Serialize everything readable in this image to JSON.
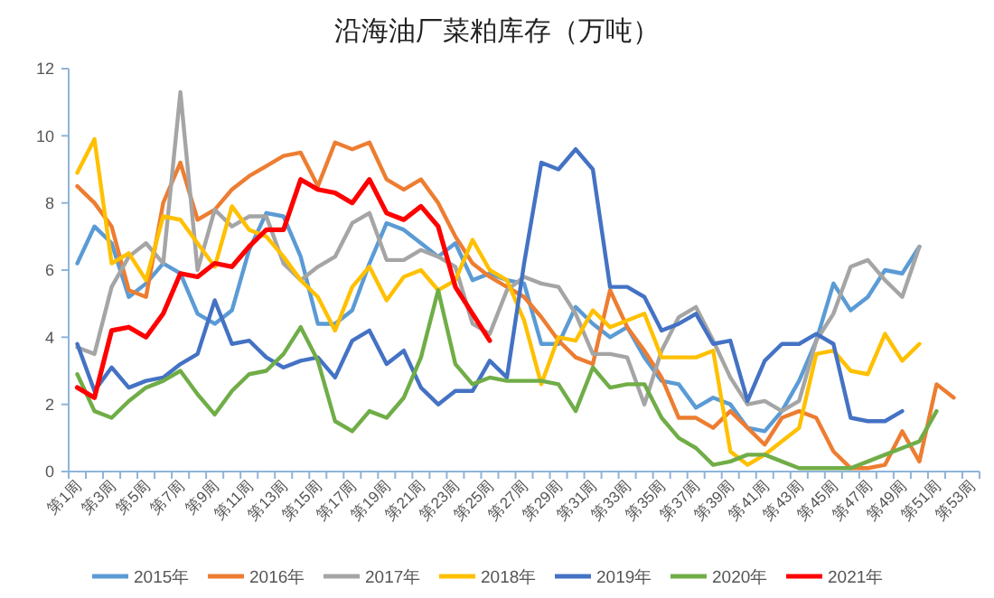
{
  "chart_data": {
    "type": "line",
    "title": "沿海油厂菜粕库存（万吨）",
    "categories": [
      "第1周",
      null,
      "第3周",
      null,
      "第5周",
      null,
      "第7周",
      null,
      "第9周",
      null,
      "第11周",
      null,
      "第13周",
      null,
      "第15周",
      null,
      "第17周",
      null,
      "第19周",
      null,
      "第21周",
      null,
      "第23周",
      null,
      "第25周",
      null,
      "第27周",
      null,
      "第29周",
      null,
      "第31周",
      null,
      "第33周",
      null,
      "第35周",
      null,
      "第37周",
      null,
      "第39周",
      null,
      "第41周",
      null,
      "第43周",
      null,
      "第45周",
      null,
      "第47周",
      null,
      "第49周",
      null,
      "第51周",
      null,
      "第53周"
    ],
    "ylim": [
      0,
      12
    ],
    "yticks": [
      0,
      2,
      4,
      6,
      8,
      10,
      12
    ],
    "grid": false,
    "legend": "bottom",
    "marker": "none",
    "line_style": "solid",
    "series": [
      {
        "name": "2015年",
        "color": "#5b9bd5",
        "values": [
          6.2,
          7.3,
          6.8,
          5.2,
          5.6,
          6.2,
          5.9,
          4.7,
          4.4,
          4.8,
          6.6,
          7.7,
          7.6,
          6.4,
          4.4,
          4.4,
          4.8,
          6.2,
          7.4,
          7.2,
          6.8,
          6.4,
          6.8,
          5.7,
          5.9,
          5.7,
          5.6,
          3.8,
          3.8,
          4.9,
          4.4,
          4.0,
          4.3,
          3.4,
          2.7,
          2.6,
          1.9,
          2.2,
          2.0,
          1.3,
          1.2,
          1.8,
          2.7,
          3.9,
          5.6,
          4.8,
          5.2,
          6.0,
          5.9,
          6.7,
          null,
          null,
          null
        ]
      },
      {
        "name": "2016年",
        "color": "#ed7d31",
        "values": [
          8.5,
          8.0,
          7.3,
          5.4,
          5.2,
          8.0,
          9.2,
          7.5,
          7.8,
          8.4,
          8.8,
          9.1,
          9.4,
          9.5,
          8.5,
          9.8,
          9.6,
          9.8,
          8.7,
          8.4,
          8.7,
          8.0,
          7.0,
          6.2,
          5.8,
          5.5,
          5.2,
          4.6,
          3.9,
          3.4,
          3.2,
          5.4,
          4.3,
          3.6,
          2.8,
          1.6,
          1.6,
          1.3,
          1.8,
          1.3,
          0.8,
          1.6,
          1.8,
          1.6,
          0.6,
          0.1,
          0.1,
          0.2,
          1.2,
          0.3,
          2.6,
          2.2,
          null
        ]
      },
      {
        "name": "2017年",
        "color": "#a5a5a5",
        "values": [
          3.7,
          3.5,
          5.5,
          6.4,
          6.8,
          6.2,
          11.3,
          6.0,
          7.8,
          7.3,
          7.6,
          7.6,
          6.2,
          5.7,
          6.1,
          6.4,
          7.4,
          7.7,
          6.3,
          6.3,
          6.6,
          6.4,
          6.1,
          4.4,
          4.1,
          5.4,
          5.8,
          5.6,
          5.5,
          4.7,
          3.5,
          3.5,
          3.4,
          2.0,
          3.6,
          4.6,
          4.9,
          3.9,
          2.8,
          2.0,
          2.1,
          1.8,
          2.1,
          3.9,
          4.7,
          6.1,
          6.3,
          5.7,
          5.2,
          6.7,
          null,
          null,
          null
        ]
      },
      {
        "name": "2018年",
        "color": "#ffc000",
        "values": [
          8.9,
          9.9,
          6.2,
          6.5,
          5.7,
          7.6,
          7.5,
          6.8,
          6.1,
          7.9,
          7.2,
          7.0,
          6.4,
          5.7,
          5.2,
          4.2,
          5.5,
          6.1,
          5.1,
          5.8,
          6.0,
          5.4,
          5.7,
          6.9,
          6.0,
          5.7,
          4.5,
          2.6,
          4.0,
          3.9,
          4.8,
          4.3,
          4.5,
          4.7,
          3.4,
          3.4,
          3.4,
          3.6,
          0.6,
          0.2,
          0.5,
          0.9,
          1.3,
          3.5,
          3.6,
          3.0,
          2.9,
          4.1,
          3.3,
          3.8,
          null,
          null,
          null
        ]
      },
      {
        "name": "2019年",
        "color": "#4472c4",
        "values": [
          3.8,
          2.4,
          3.1,
          2.5,
          2.7,
          2.8,
          3.2,
          3.5,
          5.1,
          3.8,
          3.9,
          3.4,
          3.1,
          3.3,
          3.4,
          2.8,
          3.9,
          4.2,
          3.2,
          3.6,
          2.5,
          2.0,
          2.4,
          2.4,
          3.3,
          2.8,
          6.2,
          9.2,
          9.0,
          9.6,
          9.0,
          5.5,
          5.5,
          5.2,
          4.2,
          4.4,
          4.7,
          3.8,
          3.9,
          2.1,
          3.3,
          3.8,
          3.8,
          4.1,
          3.8,
          1.6,
          1.5,
          1.5,
          1.8,
          null,
          null,
          null,
          null
        ]
      },
      {
        "name": "2020年",
        "color": "#70ad47",
        "values": [
          2.9,
          1.8,
          1.6,
          2.1,
          2.5,
          2.7,
          3.0,
          2.3,
          1.7,
          2.4,
          2.9,
          3.0,
          3.5,
          4.3,
          3.3,
          1.5,
          1.2,
          1.8,
          1.6,
          2.2,
          3.4,
          5.4,
          3.2,
          2.6,
          2.8,
          2.7,
          2.7,
          2.7,
          2.6,
          1.8,
          3.1,
          2.5,
          2.6,
          2.6,
          1.6,
          1.0,
          0.7,
          0.2,
          0.3,
          0.5,
          0.5,
          0.3,
          0.1,
          0.1,
          0.1,
          0.1,
          0.3,
          0.5,
          0.7,
          0.9,
          1.8,
          null,
          null
        ]
      },
      {
        "name": "2021年",
        "color": "#ff0000",
        "values": [
          2.5,
          2.2,
          4.2,
          4.3,
          4.0,
          4.7,
          5.9,
          5.8,
          6.2,
          6.1,
          6.7,
          7.2,
          7.2,
          8.7,
          8.4,
          8.3,
          8.0,
          8.7,
          7.7,
          7.5,
          7.9,
          7.3,
          5.5,
          4.7,
          3.9,
          null,
          null,
          null,
          null,
          null,
          null,
          null,
          null,
          null,
          null,
          null,
          null,
          null,
          null,
          null,
          null,
          null,
          null,
          null,
          null,
          null,
          null,
          null,
          null,
          null,
          null,
          null,
          null
        ]
      }
    ]
  }
}
